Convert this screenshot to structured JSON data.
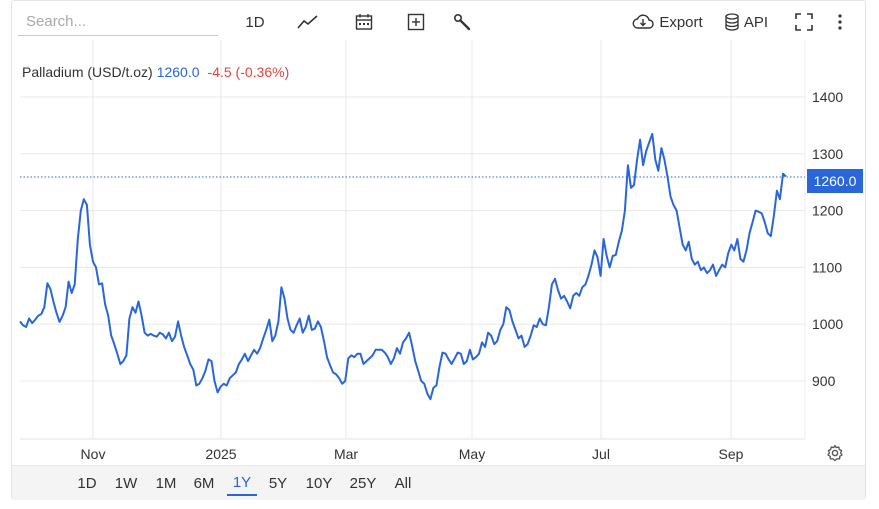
{
  "search": {
    "placeholder": "Search..."
  },
  "toolbar": {
    "interval_label": "1D",
    "export_label": "Export",
    "api_label": "API"
  },
  "legend": {
    "name": "Palladium (USD/t.oz)",
    "price": "1260.0",
    "change": "-4.5 (-0.36%)"
  },
  "ranges": [
    "1D",
    "1W",
    "1M",
    "6M",
    "1Y",
    "5Y",
    "10Y",
    "25Y",
    "All"
  ],
  "active_range": "1Y",
  "colors": {
    "line": "#2a66d9",
    "down": "#e0463e",
    "grid": "#e8e8e8",
    "accent": "#2a66d9"
  },
  "chart_data": {
    "type": "line",
    "y_ticks": [
      900,
      1000,
      1100,
      1200,
      1300,
      1400
    ],
    "x_ticks": [
      "Nov",
      "2025",
      "Mar",
      "May",
      "Jul",
      "Sep"
    ],
    "last_value_label": "1260.0",
    "grid": true,
    "series": [
      {
        "values": [
          1005,
          998,
          995,
          1010,
          1002,
          1008,
          1015,
          1018,
          1030,
          1072,
          1062,
          1040,
          1020,
          1004,
          1015,
          1030,
          1075,
          1055,
          1070,
          1150,
          1200,
          1220,
          1210,
          1140,
          1110,
          1100,
          1070,
          1072,
          1035,
          1015,
          980,
          965,
          948,
          930,
          935,
          945,
          1010,
          1030,
          1020,
          1040,
          1015,
          985,
          980,
          983,
          980,
          978,
          985,
          982,
          975,
          985,
          970,
          978,
          1005,
          980,
          960,
          945,
          930,
          920,
          892,
          895,
          905,
          918,
          938,
          935,
          900,
          880,
          890,
          895,
          892,
          905,
          910,
          915,
          930,
          938,
          948,
          935,
          945,
          955,
          948,
          958,
          975,
          990,
          1008,
          970,
          980,
          1005,
          1065,
          1045,
          1010,
          990,
          985,
          998,
          1010,
          985,
          995,
          1015,
          990,
          992,
          1005,
          995,
          970,
          942,
          928,
          915,
          912,
          905,
          895,
          900,
          940,
          945,
          942,
          948,
          948,
          930,
          935,
          940,
          945,
          955,
          955,
          955,
          950,
          942,
          930,
          940,
          958,
          948,
          968,
          975,
          985,
          962,
          935,
          918,
          900,
          895,
          878,
          868,
          888,
          892,
          925,
          950,
          948,
          938,
          930,
          940,
          950,
          948,
          930,
          935,
          955,
          938,
          942,
          948,
          968,
          960,
          985,
          980,
          965,
          970,
          990,
          1000,
          1030,
          1025,
          1005,
          990,
          975,
          980,
          960,
          965,
          980,
          998,
          995,
          1010,
          1000,
          998,
          1030,
          1070,
          1080,
          1060,
          1045,
          1050,
          1040,
          1028,
          1050,
          1055,
          1050,
          1065,
          1070,
          1085,
          1105,
          1130,
          1118,
          1085,
          1150,
          1120,
          1100,
          1120,
          1122,
          1145,
          1165,
          1200,
          1280,
          1240,
          1245,
          1290,
          1325,
          1280,
          1305,
          1320,
          1335,
          1290,
          1270,
          1310,
          1290,
          1260,
          1225,
          1210,
          1200,
          1170,
          1140,
          1130,
          1145,
          1115,
          1105,
          1110,
          1095,
          1100,
          1090,
          1095,
          1105,
          1085,
          1095,
          1105,
          1100,
          1125,
          1140,
          1130,
          1150,
          1115,
          1110,
          1130,
          1160,
          1180,
          1200,
          1198,
          1195,
          1180,
          1160,
          1155,
          1190,
          1235,
          1220,
          1265,
          1260
        ]
      }
    ]
  }
}
